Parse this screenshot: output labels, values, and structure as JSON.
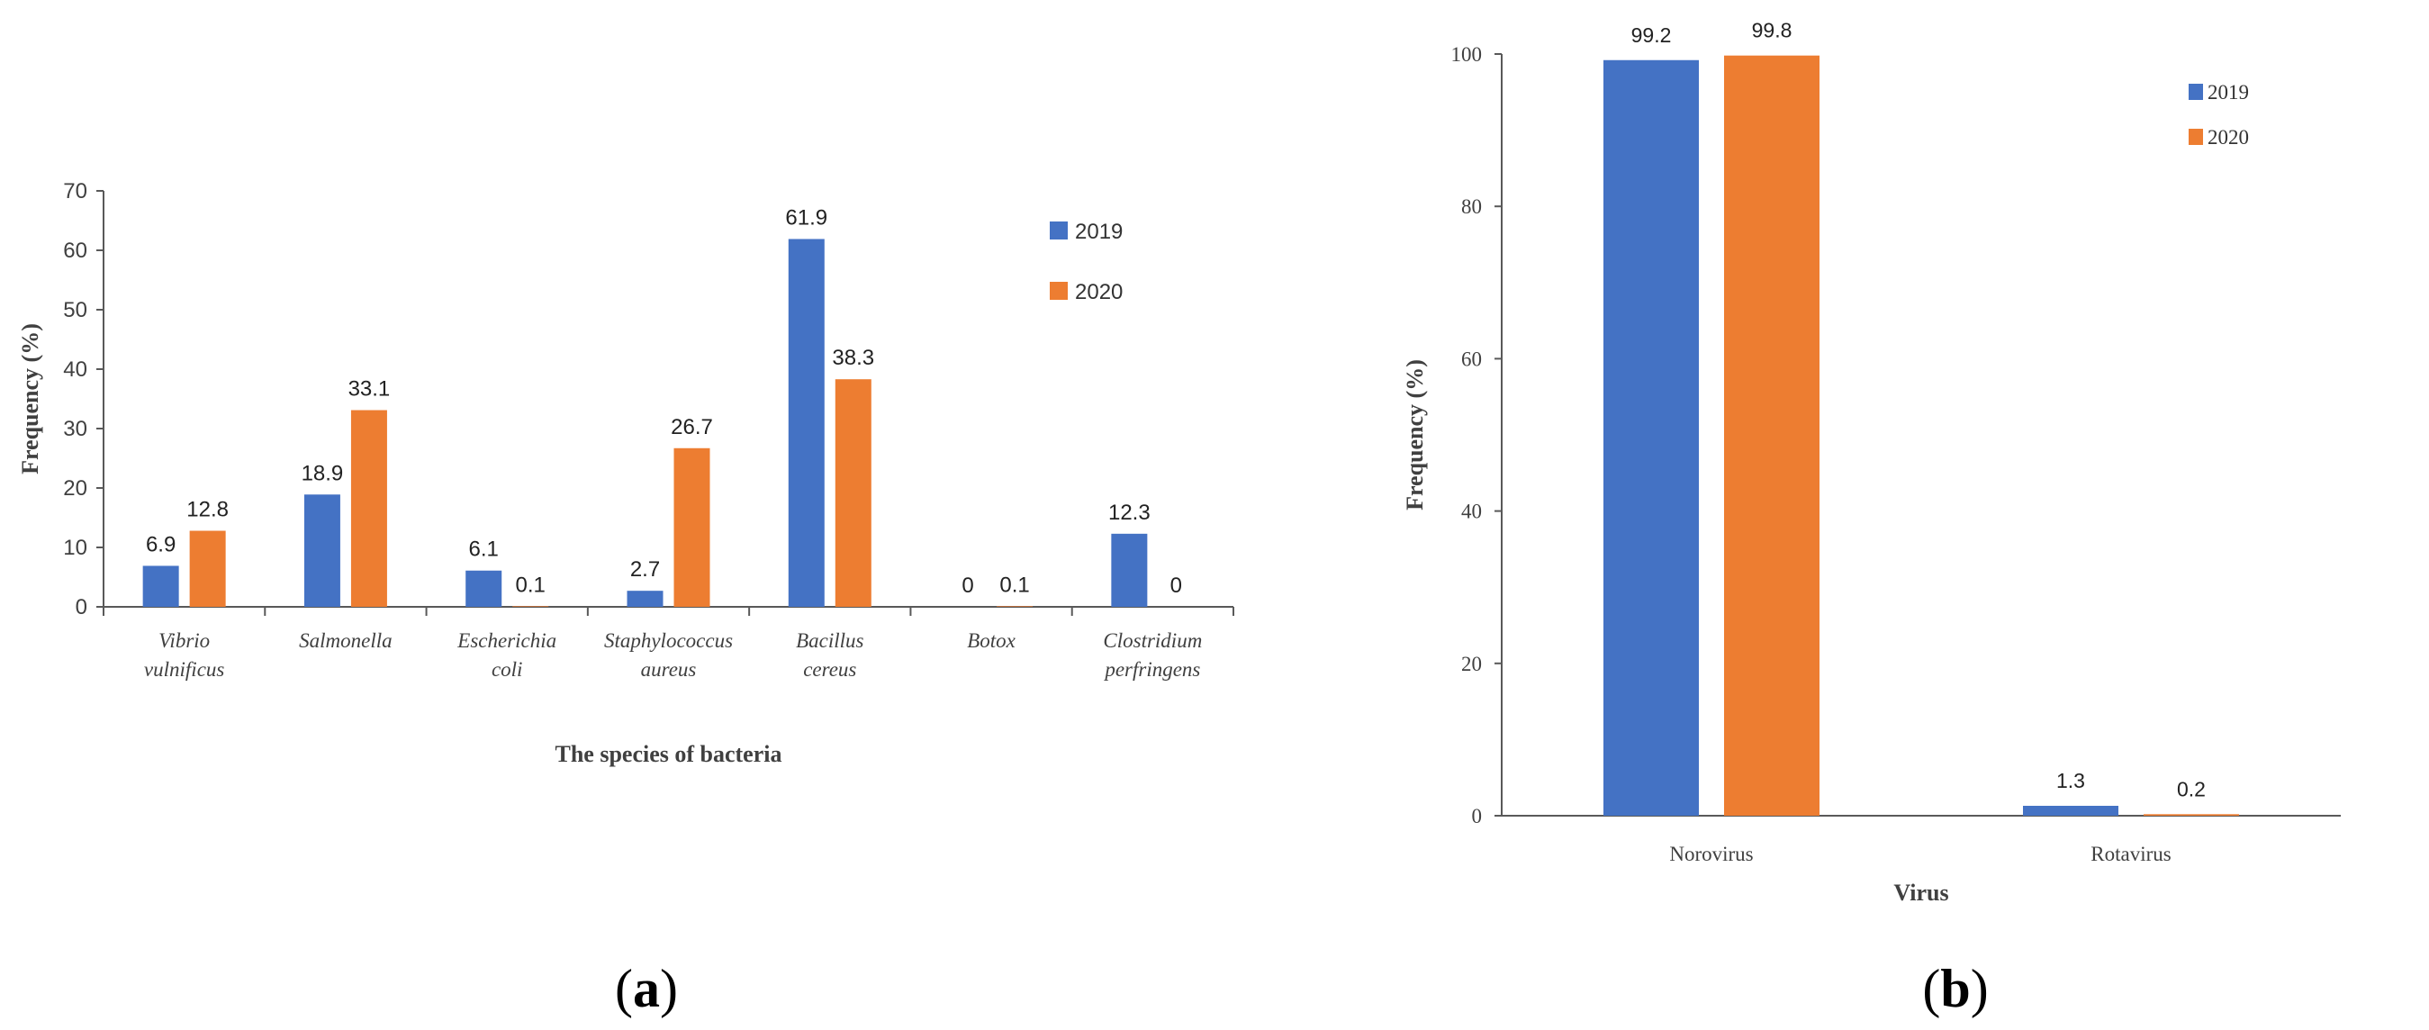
{
  "chart_data": [
    {
      "type": "bar",
      "panel": "(a)",
      "panel_letter": "a",
      "categories": [
        [
          "Vibrio",
          "vulnificus"
        ],
        [
          "Salmonella"
        ],
        [
          "Escherichia",
          "coli"
        ],
        [
          "Staphylococcus",
          "aureus"
        ],
        [
          "Bacillus",
          "cereus"
        ],
        [
          "Botox"
        ],
        [
          "Clostridium",
          "perfringens"
        ]
      ],
      "series": [
        {
          "name": "2019",
          "color": "#4472C4",
          "values": [
            6.9,
            18.9,
            6.1,
            2.7,
            61.9,
            0,
            12.3
          ]
        },
        {
          "name": "2020",
          "color": "#ED7D31",
          "values": [
            12.8,
            33.1,
            0.1,
            26.7,
            38.3,
            0.1,
            0
          ]
        }
      ],
      "labels": [
        [
          "6.9",
          "18.9",
          "6.1",
          "2.7",
          "61.9",
          "0",
          "12.3"
        ],
        [
          "12.8",
          "33.1",
          "0.1",
          "26.7",
          "38.3",
          "0.1",
          "0"
        ]
      ],
      "ylim": [
        0,
        70
      ],
      "yticks": [
        "0",
        "10",
        "20",
        "30",
        "40",
        "50",
        "60",
        "70"
      ],
      "xlabel": "The species of bacteria",
      "ylabel": "Frequency (%)",
      "legend": "right"
    },
    {
      "type": "bar",
      "panel": "(b)",
      "panel_letter": "b",
      "categories": [
        [
          "Norovirus"
        ],
        [
          "Rotavirus"
        ]
      ],
      "series": [
        {
          "name": "2019",
          "color": "#4472C4",
          "values": [
            99.2,
            1.3
          ]
        },
        {
          "name": "2020",
          "color": "#ED7D31",
          "values": [
            99.8,
            0.2
          ]
        }
      ],
      "labels": [
        [
          "99.2",
          "1.3"
        ],
        [
          "99.8",
          "0.2"
        ]
      ],
      "ylim": [
        0,
        100
      ],
      "yticks": [
        "0",
        "20",
        "40",
        "60",
        "80",
        "100"
      ],
      "xlabel": "Virus",
      "ylabel": "Frequency (%)",
      "legend": "top-right"
    }
  ]
}
